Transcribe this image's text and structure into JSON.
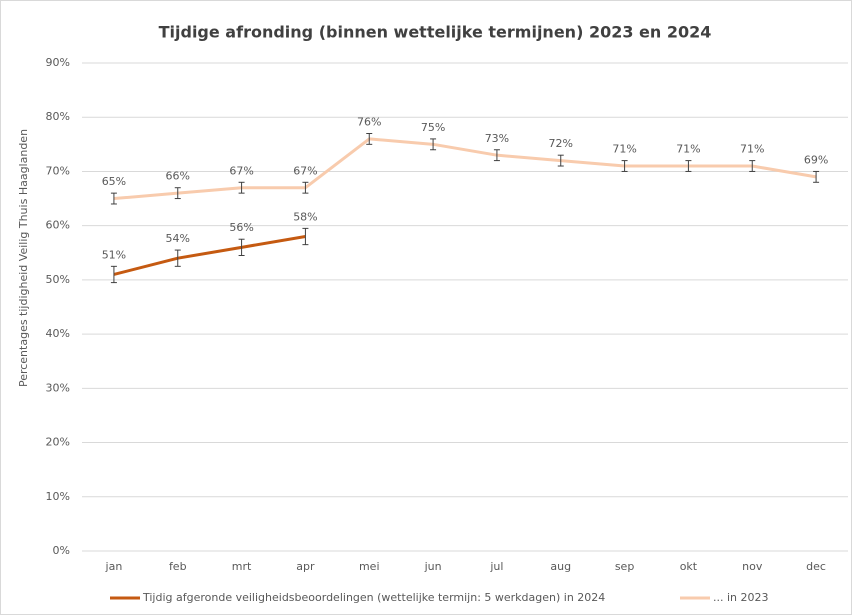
{
  "chart_data": {
    "type": "line",
    "title": "Tijdige afronding (binnen wettelijke termijnen) 2023 en 2024",
    "y_label": "Percentages tijdigheid Veilig Thuis Haaglanden",
    "categories": [
      "jan",
      "feb",
      "mrt",
      "apr",
      "mei",
      "jun",
      "jul",
      "aug",
      "sep",
      "okt",
      "nov",
      "dec"
    ],
    "series": [
      {
        "name": "Tijdig afgeronde veiligheidsbeoordelingen (wettelijke termijn: 5 werkdagen) in 2024",
        "color": "#c55a11",
        "values": [
          51,
          54,
          56,
          58,
          null,
          null,
          null,
          null,
          null,
          null,
          null,
          null
        ],
        "value_labels": [
          "51%",
          "54%",
          "56%",
          "58%",
          null,
          null,
          null,
          null,
          null,
          null,
          null,
          null
        ],
        "errors": [
          1.5,
          1.5,
          1.5,
          1.5,
          null,
          null,
          null,
          null,
          null,
          null,
          null,
          null
        ]
      },
      {
        "name": "... in 2023",
        "color": "#f8cbad",
        "values": [
          65,
          66,
          67,
          67,
          76,
          75,
          73,
          72,
          71,
          71,
          71,
          69
        ],
        "value_labels": [
          "65%",
          "66%",
          "67%",
          "67%",
          "76%",
          "75%",
          "73%",
          "72%",
          "71%",
          "71%",
          "71%",
          "69%"
        ],
        "errors": [
          1,
          1,
          1,
          1,
          1,
          1,
          1,
          1,
          1,
          1,
          1,
          1
        ]
      }
    ],
    "ylim": [
      0,
      90
    ],
    "yticks": [
      {
        "value": 0,
        "label": "0%"
      },
      {
        "value": 10,
        "label": "10%"
      },
      {
        "value": 20,
        "label": "20%"
      },
      {
        "value": 30,
        "label": "30%"
      },
      {
        "value": 40,
        "label": "40%"
      },
      {
        "value": 50,
        "label": "50%"
      },
      {
        "value": 60,
        "label": "60%"
      },
      {
        "value": 70,
        "label": "70%"
      },
      {
        "value": 80,
        "label": "80%"
      },
      {
        "value": 90,
        "label": "90%"
      }
    ],
    "grid": true,
    "legend": "bottom"
  }
}
